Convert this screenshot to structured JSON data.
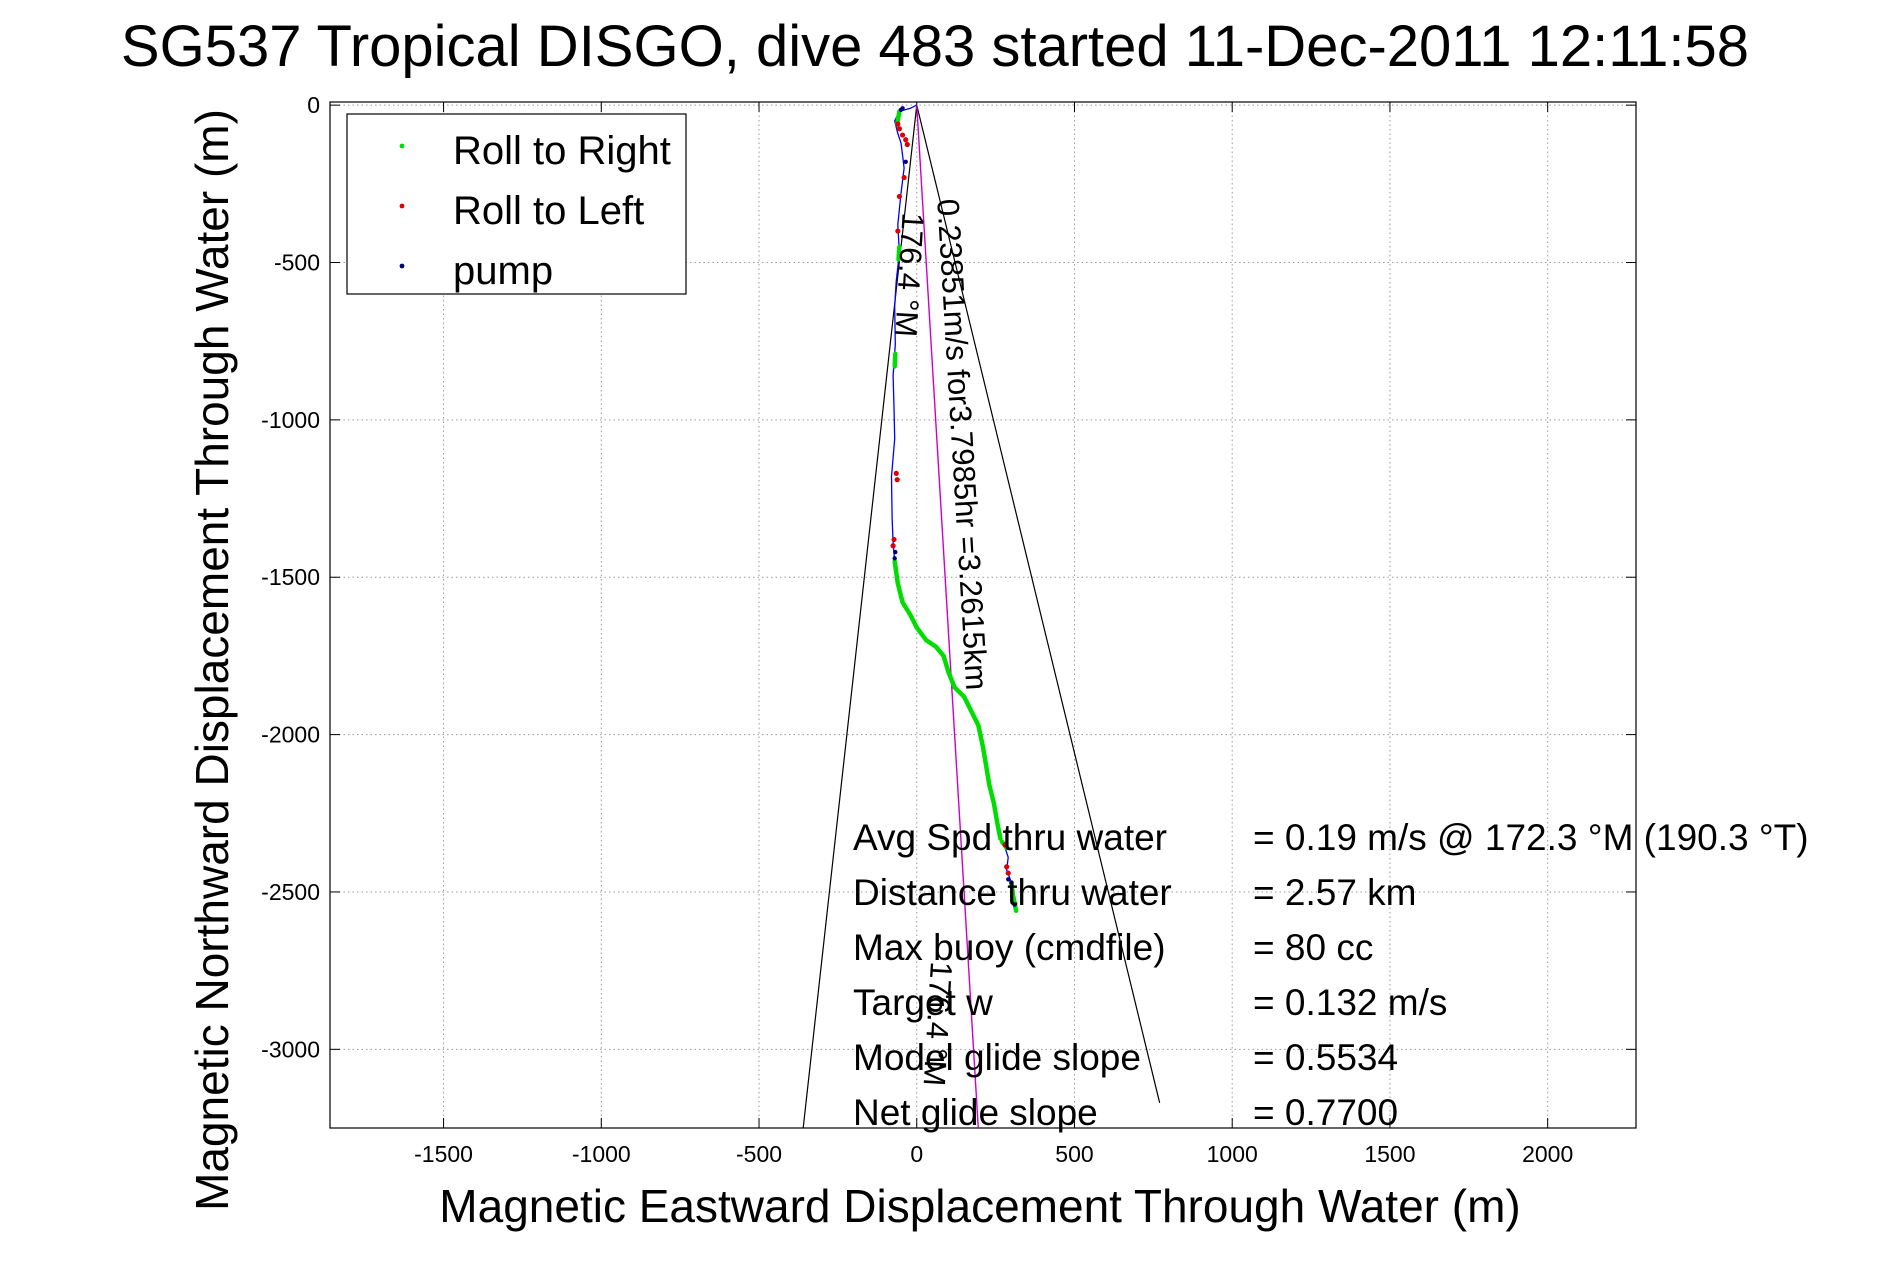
{
  "chart_data": {
    "type": "line",
    "title": "SG537 Tropical DISGO, dive 483 started 11-Dec-2011 12:11:58",
    "xlabel": "Magnetic Eastward Displacement Through Water (m)",
    "ylabel": "Magnetic Northward Displacement Through Water (m)",
    "xlim": [
      -1860,
      2280
    ],
    "ylim": [
      -3250,
      10
    ],
    "xticks": [
      -1500,
      -1000,
      -500,
      0,
      500,
      1000,
      1500,
      2000
    ],
    "xtick_labels": [
      "-1500",
      "-1000",
      "-500",
      "0",
      "500",
      "1000",
      "1500",
      "2000"
    ],
    "yticks": [
      0,
      -500,
      -1000,
      -1500,
      -2000,
      -2500,
      -3000
    ],
    "ytick_labels": [
      "0",
      "-500",
      "-1000",
      "-1500",
      "-2000",
      "-2500",
      "-3000"
    ],
    "grid": true,
    "legend_position": "top-left",
    "legend": [
      {
        "label": "Roll to Right",
        "color": "#00dd00"
      },
      {
        "label": "Roll to Left",
        "color": "#dd0000"
      },
      {
        "label": "pump",
        "color": "#000080"
      }
    ],
    "track": {
      "color": "#0000ff",
      "x": [
        0,
        -20,
        -55,
        -70,
        -60,
        -50,
        -45,
        -40,
        -50,
        -60,
        -55,
        -65,
        -70,
        -68,
        -75,
        -72,
        -70,
        -80,
        -78,
        -75,
        -70,
        -60,
        -45,
        -20,
        0,
        30,
        60,
        85,
        100,
        120,
        150,
        170,
        195,
        210,
        220,
        230,
        245,
        255,
        265,
        280,
        290,
        285,
        300,
        305,
        315
      ],
      "y": [
        0,
        -10,
        -20,
        -50,
        -90,
        -120,
        -160,
        -200,
        -280,
        -380,
        -470,
        -560,
        -640,
        -760,
        -860,
        -960,
        -1060,
        -1180,
        -1310,
        -1390,
        -1450,
        -1520,
        -1580,
        -1620,
        -1660,
        -1700,
        -1720,
        -1750,
        -1800,
        -1850,
        -1880,
        -1920,
        -1970,
        -2040,
        -2100,
        -2160,
        -2220,
        -2280,
        -2330,
        -2360,
        -2390,
        -2430,
        -2470,
        -2510,
        -2560
      ]
    },
    "roll_right_segments": [
      [
        [
          -55,
          -20
        ],
        [
          -62,
          -60
        ]
      ],
      [
        [
          -55,
          -450
        ],
        [
          -58,
          -490
        ]
      ],
      [
        [
          -68,
          -790
        ],
        [
          -70,
          -830
        ]
      ],
      [
        [
          -70,
          -1450
        ],
        [
          -60,
          -1520
        ],
        [
          -45,
          -1580
        ],
        [
          -20,
          -1620
        ],
        [
          0,
          -1660
        ],
        [
          30,
          -1700
        ],
        [
          60,
          -1720
        ],
        [
          85,
          -1750
        ],
        [
          100,
          -1800
        ],
        [
          120,
          -1850
        ],
        [
          150,
          -1880
        ],
        [
          170,
          -1920
        ],
        [
          195,
          -1970
        ],
        [
          210,
          -2040
        ],
        [
          220,
          -2100
        ],
        [
          230,
          -2160
        ],
        [
          245,
          -2220
        ],
        [
          255,
          -2280
        ],
        [
          265,
          -2330
        ]
      ],
      [
        [
          270,
          -2340
        ],
        [
          285,
          -2360
        ]
      ],
      [
        [
          300,
          -2470
        ],
        [
          305,
          -2510
        ],
        [
          315,
          -2560
        ]
      ]
    ],
    "roll_left_points": [
      {
        "x": -60,
        "y": -60
      },
      {
        "x": -55,
        "y": -75
      },
      {
        "x": -45,
        "y": -95
      },
      {
        "x": -35,
        "y": -110
      },
      {
        "x": -30,
        "y": -125
      },
      {
        "x": -40,
        "y": -230
      },
      {
        "x": -55,
        "y": -290
      },
      {
        "x": -60,
        "y": -400
      },
      {
        "x": -65,
        "y": -1170
      },
      {
        "x": -62,
        "y": -1190
      },
      {
        "x": -75,
        "y": -1400
      },
      {
        "x": -72,
        "y": -1380
      },
      {
        "x": 280,
        "y": -2350
      },
      {
        "x": 285,
        "y": -2420
      },
      {
        "x": 290,
        "y": -2440
      }
    ],
    "pump_points": [
      {
        "x": -45,
        "y": -10
      },
      {
        "x": -50,
        "y": -15
      },
      {
        "x": -35,
        "y": -180
      },
      {
        "x": -68,
        "y": -1420
      },
      {
        "x": -70,
        "y": -1440
      },
      {
        "x": 300,
        "y": -2470
      },
      {
        "x": 290,
        "y": -2460
      },
      {
        "x": 310,
        "y": -2540
      }
    ],
    "current_line": {
      "color": "#cc00cc",
      "x": [
        0,
        195
      ],
      "y": [
        0,
        -3250
      ]
    },
    "cone_lines": [
      {
        "x": [
          0,
          -360
        ],
        "y": [
          0,
          -3250
        ]
      },
      {
        "x": [
          0,
          770
        ],
        "y": [
          0,
          -3170
        ]
      }
    ],
    "annotations": [
      {
        "id": "current",
        "text": "0.23851m/s for3.7985hr =3.2615km",
        "x": 65,
        "y": -300,
        "angle": 86.6
      },
      {
        "id": "heading1",
        "text": "176.4 °M",
        "x": -45,
        "y": -340,
        "angle": 93.4
      },
      {
        "id": "heading2",
        "text": "176.4 °M",
        "x": 45,
        "y": -2720,
        "angle": 93.4
      }
    ],
    "stats": [
      {
        "label": "Avg Spd thru water",
        "value": "=  0.19 m/s @ 172.3 °M (190.3 °T)"
      },
      {
        "label": "Distance thru water",
        "value": "=  2.57 km"
      },
      {
        "label": "Max buoy (cmdfile)",
        "value": "= 80 cc"
      },
      {
        "label": "Target w",
        "value": "= 0.132 m/s"
      },
      {
        "label": "Model glide slope",
        "value": "= 0.5534"
      },
      {
        "label": "Net glide slope",
        "value": "= 0.7700"
      }
    ]
  }
}
